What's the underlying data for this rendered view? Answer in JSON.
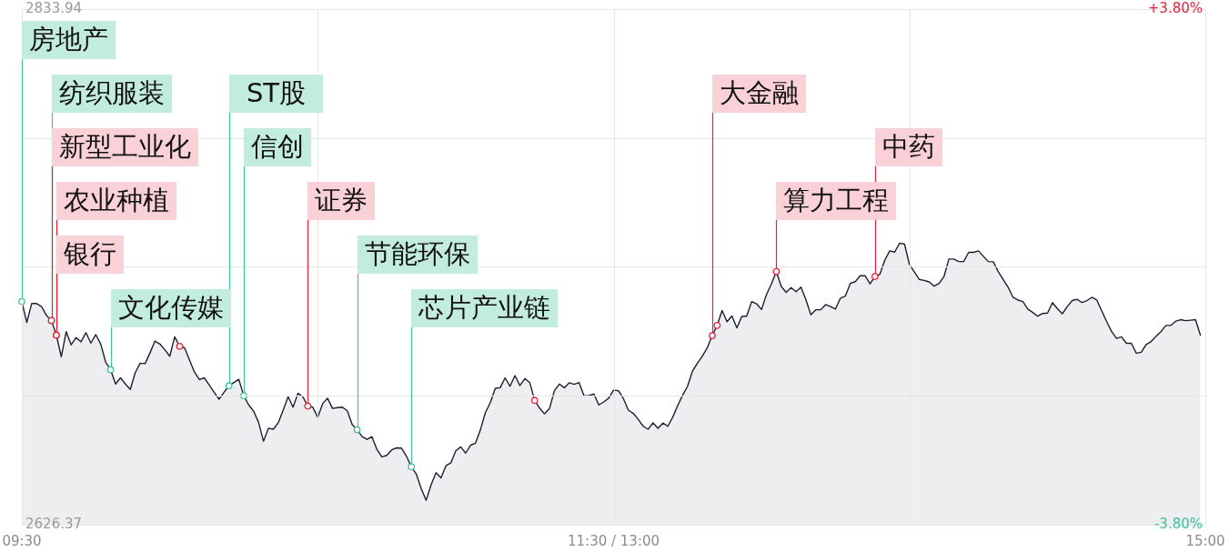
{
  "chart_data": {
    "type": "area",
    "grid": true,
    "categories": [
      "09:30",
      null,
      null,
      null,
      null,
      null,
      null,
      null,
      null,
      null,
      null,
      null,
      null,
      null,
      null,
      null,
      null,
      null,
      null,
      null,
      null,
      null,
      null,
      null,
      null,
      null,
      null,
      null,
      null,
      null,
      null,
      null,
      null,
      null,
      null,
      null,
      null,
      null,
      null,
      null,
      null,
      null,
      null,
      null,
      null,
      null,
      null,
      null,
      null,
      null,
      null,
      null,
      null,
      null,
      null,
      null,
      null,
      null,
      null,
      null,
      null,
      null,
      null,
      null,
      null,
      null,
      null,
      null,
      null,
      null,
      null,
      null,
      null,
      null,
      null,
      null,
      null,
      null,
      null,
      null,
      null,
      null,
      null,
      null,
      null,
      null,
      null,
      null,
      null,
      null,
      null,
      null,
      null,
      null,
      null,
      null,
      null,
      null,
      null,
      null,
      null,
      null,
      null,
      null,
      null,
      null,
      null,
      null,
      null,
      null,
      null,
      null,
      null,
      null,
      null,
      null,
      null,
      null,
      null,
      null,
      "11:30 / 13:00",
      null,
      null,
      null,
      null,
      null,
      null,
      null,
      null,
      null,
      null,
      null,
      null,
      null,
      null,
      null,
      null,
      null,
      null,
      null,
      null,
      null,
      null,
      null,
      null,
      null,
      null,
      null,
      null,
      null,
      null,
      null,
      null,
      null,
      null,
      null,
      null,
      null,
      null,
      null,
      null,
      null,
      null,
      null,
      null,
      null,
      null,
      null,
      null,
      null,
      null,
      null,
      null,
      null,
      null,
      null,
      null,
      null,
      null,
      null,
      null,
      null,
      null,
      null,
      null,
      null,
      null,
      null,
      null,
      null,
      null,
      null,
      null,
      null,
      null,
      null,
      null,
      null,
      null,
      null,
      null,
      null,
      null,
      null,
      null,
      null,
      null,
      null,
      null,
      null,
      null,
      null,
      null,
      null,
      null,
      null,
      null,
      null,
      null,
      null,
      null,
      null,
      null,
      null,
      null,
      null,
      null,
      null,
      null,
      null,
      null,
      null,
      null,
      null,
      null,
      null,
      null,
      null,
      null,
      null,
      "15:00"
    ],
    "ylim": [
      2626.37,
      2833.94
    ],
    "yticks": [
      2626.37,
      {
        "value": 2678.26,
        "label": null
      },
      {
        "value": 2730.16,
        "label": null
      },
      {
        "value": 2782.05,
        "label": null
      },
      2833.94
    ],
    "y2lim": [
      -3.8,
      3.8
    ],
    "y2ticks": [
      {
        "value": -3.8,
        "label": "-3.80%"
      },
      {
        "value": 3.8,
        "label": "+3.80%"
      }
    ],
    "series": [
      {
        "color": "#1e1e30",
        "values": [
          2716.2,
          2707.8,
          2715.4,
          2715.4,
          2714.2,
          2710.6,
          2708.6,
          2702.7,
          2694.0,
          2704.1,
          2698.8,
          2701.7,
          2700.0,
          2703.7,
          2699.5,
          2702.9,
          2699.1,
          2691.8,
          2688.8,
          2683.0,
          2685.5,
          2683.0,
          2680.8,
          2687.6,
          2691.4,
          2691.2,
          2695.6,
          2700.3,
          2699.1,
          2696.8,
          2694.2,
          2702.0,
          2698.2,
          2697.6,
          2692.7,
          2687.8,
          2684.8,
          2685.5,
          2682.6,
          2679.7,
          2676.9,
          2679.7,
          2682.3,
          2683.6,
          2684.9,
          2678.3,
          2674.6,
          2672.1,
          2667.6,
          2660.0,
          2665.2,
          2664.8,
          2667.4,
          2672.5,
          2677.9,
          2673.7,
          2679.3,
          2677.8,
          2674.1,
          2673.7,
          2669.6,
          2675.1,
          2677.3,
          2673.2,
          2673.5,
          2673.7,
          2672.2,
          2666.6,
          2664.6,
          2661.8,
          2660.7,
          2661.8,
          2656.7,
          2653.7,
          2654.3,
          2656.5,
          2657.3,
          2657.2,
          2653.9,
          2649.7,
          2646.7,
          2640.8,
          2636.2,
          2642.5,
          2647.3,
          2645.2,
          2650.1,
          2651.3,
          2656.1,
          2657.7,
          2655.2,
          2658.4,
          2659.2,
          2664.6,
          2671.5,
          2675.5,
          2681.3,
          2681.5,
          2685.5,
          2682.1,
          2686.4,
          2682.4,
          2685.2,
          2683.6,
          2676.4,
          2673.3,
          2671.0,
          2673.1,
          2680.3,
          2683.0,
          2681.5,
          2683.5,
          2682.9,
          2683.6,
          2678.3,
          2678.4,
          2679.0,
          2674.6,
          2675.8,
          2677.3,
          2680.6,
          2680.3,
          2677.1,
          2672.5,
          2671.2,
          2668.8,
          2666.0,
          2664.8,
          2667.4,
          2665.2,
          2667.3,
          2666.0,
          2669.7,
          2674.3,
          2678.5,
          2682.1,
          2688.2,
          2691.4,
          2694.2,
          2697.6,
          2702.5,
          2706.6,
          2712.6,
          2708.1,
          2710.4,
          2705.6,
          2710.2,
          2710.4,
          2716.2,
          2715.3,
          2713.0,
          2719.0,
          2723.3,
          2728.3,
          2722.3,
          2719.9,
          2721.8,
          2720.2,
          2722.0,
          2717.0,
          2710.9,
          2712.9,
          2712.9,
          2715.0,
          2714.2,
          2713.2,
          2717.6,
          2718.4,
          2723.5,
          2724.2,
          2726.6,
          2726.6,
          2723.3,
          2726.3,
          2727.2,
          2732.9,
          2736.6,
          2736.1,
          2739.7,
          2739.3,
          2731.1,
          2728.1,
          2725.1,
          2724.7,
          2724.1,
          2722.4,
          2723.5,
          2726.3,
          2733.3,
          2733.3,
          2732.3,
          2732.3,
          2736.0,
          2736.0,
          2736.6,
          2734.4,
          2732.3,
          2732.2,
          2728.3,
          2725.1,
          2722.0,
          2717.9,
          2716.8,
          2716.2,
          2713.2,
          2711.8,
          2710.3,
          2711.4,
          2711.6,
          2715.8,
          2713.3,
          2711.3,
          2714.2,
          2716.6,
          2717.1,
          2715.8,
          2716.6,
          2717.9,
          2716.8,
          2712.4,
          2708.1,
          2704.1,
          2701.4,
          2702.0,
          2699.4,
          2699.4,
          2695.4,
          2695.8,
          2698.9,
          2700.1,
          2702.2,
          2704.1,
          2706.6,
          2706.6,
          2708.3,
          2708.9,
          2708.5,
          2708.7,
          2708.9,
          2702.7,
          null
        ]
      },
      {
        "type": "scatter",
        "marker": "circle",
        "color": "#41c29c",
        "values": [
          2716.2,
          null,
          null,
          null,
          null,
          null,
          2708.6,
          null,
          null,
          null,
          null,
          null,
          null,
          null,
          null,
          null,
          null,
          null,
          2688.8,
          null,
          null,
          null,
          null,
          null,
          null,
          null,
          null,
          null,
          null,
          null,
          null,
          null,
          null,
          null,
          null,
          null,
          null,
          null,
          null,
          null,
          null,
          null,
          2682.3,
          null,
          null,
          2678.3,
          null,
          null,
          null,
          null,
          null,
          null,
          null,
          null,
          null,
          null,
          null,
          null,
          null,
          null,
          null,
          null,
          null,
          null,
          null,
          null,
          null,
          null,
          2664.6,
          null,
          null,
          null,
          null,
          null,
          null,
          null,
          null,
          null,
          null,
          2649.7,
          null,
          null,
          null,
          null,
          null,
          null,
          null,
          null,
          null,
          null,
          null,
          null,
          null,
          null,
          null,
          null,
          null,
          null,
          null,
          null,
          null,
          null,
          null,
          null,
          null,
          null,
          null,
          null,
          null,
          null,
          null,
          null,
          null,
          null,
          null,
          null,
          null,
          null,
          null,
          null,
          null,
          null,
          null,
          null,
          null,
          null,
          null,
          null,
          null,
          null,
          null,
          null,
          null,
          null,
          null,
          null,
          null,
          null,
          null,
          null,
          null,
          null,
          null,
          null,
          null,
          null,
          null,
          null,
          null,
          null,
          null,
          null,
          null,
          null,
          null,
          null,
          null,
          null,
          null,
          null,
          null,
          null,
          null,
          null,
          null,
          null,
          null,
          null,
          null,
          null,
          null,
          null,
          null,
          null,
          null,
          null,
          null,
          null,
          null,
          null,
          null,
          null,
          null,
          null,
          null,
          null,
          null,
          null,
          null,
          null,
          null,
          null,
          null,
          null,
          null,
          null,
          null,
          null,
          null,
          null,
          null,
          null,
          null,
          null,
          null,
          null,
          null,
          null,
          null,
          null,
          null,
          null,
          null,
          null,
          null,
          null,
          null,
          null,
          null,
          null,
          null,
          null,
          null,
          null,
          null,
          null,
          null,
          null,
          null,
          null,
          null,
          null,
          null,
          null,
          null,
          null,
          null,
          null,
          null,
          null,
          null
        ],
        "value_labels": [
          "房地产",
          null,
          null,
          null,
          null,
          null,
          "纺织服装",
          null,
          null,
          null,
          null,
          null,
          null,
          null,
          null,
          null,
          null,
          null,
          "文化传媒",
          null,
          null,
          null,
          null,
          null,
          null,
          null,
          null,
          null,
          null,
          null,
          null,
          null,
          null,
          null,
          null,
          null,
          null,
          null,
          null,
          null,
          null,
          null,
          "ST股",
          null,
          null,
          "信创",
          null,
          null,
          null,
          null,
          null,
          null,
          null,
          null,
          null,
          null,
          null,
          null,
          null,
          null,
          null,
          null,
          null,
          null,
          null,
          null,
          null,
          null,
          "节能环保",
          null,
          null,
          null,
          null,
          null,
          null,
          null,
          null,
          null,
          null,
          "芯片产业链",
          null,
          null,
          null,
          null,
          null,
          null,
          null,
          null,
          null,
          null,
          null,
          null,
          null,
          null,
          null,
          null,
          null,
          null,
          null,
          null,
          null,
          null,
          null,
          null,
          null,
          null,
          null,
          null,
          null,
          null,
          null,
          null,
          null,
          null,
          null,
          null,
          null,
          null,
          null,
          null,
          null,
          null,
          null,
          null,
          null,
          null,
          null,
          null,
          null,
          null,
          null,
          null,
          null,
          null,
          null,
          null,
          null,
          null,
          null,
          null,
          null,
          null,
          null,
          null,
          null,
          null,
          null,
          null,
          null,
          null,
          null,
          null,
          null,
          null,
          null,
          null,
          null,
          null,
          null,
          null,
          null,
          null,
          null,
          null,
          null,
          null,
          null,
          null,
          null,
          null,
          null,
          null,
          null,
          null,
          null,
          null,
          null,
          null,
          null,
          null,
          null,
          null,
          null,
          null,
          null,
          null,
          null,
          null,
          null,
          null,
          null,
          null,
          null,
          null,
          null,
          null,
          null,
          null,
          null,
          null,
          null,
          null,
          null,
          null,
          null,
          null,
          null,
          null,
          null,
          null,
          null,
          null,
          null,
          null,
          null,
          null,
          null,
          null,
          null,
          null,
          null,
          null,
          null,
          null,
          null,
          null,
          null,
          null,
          null,
          null,
          null,
          null,
          null,
          null,
          null,
          null,
          null,
          null,
          null,
          null,
          null
        ]
      },
      {
        "type": "scatter",
        "marker": "circle",
        "color": "#e8203a",
        "values": [
          null,
          null,
          null,
          null,
          null,
          null,
          2708.6,
          2702.7,
          null,
          null,
          null,
          null,
          null,
          null,
          null,
          null,
          null,
          null,
          null,
          null,
          null,
          null,
          null,
          null,
          null,
          null,
          null,
          null,
          null,
          null,
          null,
          null,
          2698.2,
          null,
          null,
          null,
          null,
          null,
          null,
          null,
          null,
          null,
          null,
          null,
          null,
          null,
          null,
          null,
          null,
          null,
          null,
          null,
          null,
          null,
          null,
          null,
          null,
          null,
          2674.1,
          null,
          null,
          null,
          null,
          null,
          null,
          null,
          null,
          null,
          null,
          null,
          null,
          null,
          null,
          null,
          null,
          null,
          null,
          null,
          null,
          null,
          null,
          null,
          null,
          null,
          null,
          null,
          null,
          null,
          null,
          null,
          null,
          null,
          null,
          null,
          null,
          null,
          null,
          null,
          null,
          null,
          null,
          null,
          null,
          null,
          2676.4,
          null,
          null,
          null,
          null,
          null,
          null,
          null,
          null,
          null,
          null,
          null,
          null,
          null,
          null,
          null,
          null,
          null,
          null,
          null,
          null,
          null,
          null,
          null,
          null,
          null,
          null,
          null,
          null,
          null,
          null,
          null,
          null,
          null,
          null,
          null,
          2702.5,
          2706.6,
          null,
          null,
          null,
          null,
          null,
          null,
          null,
          null,
          null,
          null,
          null,
          2728.3,
          null,
          null,
          null,
          null,
          null,
          null,
          null,
          null,
          null,
          null,
          null,
          null,
          null,
          null,
          null,
          null,
          null,
          null,
          null,
          2726.3,
          null,
          null,
          null,
          null,
          null,
          null,
          null,
          null,
          null,
          null,
          null,
          null,
          null,
          null,
          null,
          null,
          null,
          null,
          null,
          null,
          null,
          null,
          null,
          null,
          null,
          null,
          null,
          null,
          null,
          null,
          null,
          null,
          null,
          null,
          null,
          null,
          null,
          null,
          null,
          null,
          null,
          null,
          null,
          null,
          null,
          null,
          null,
          null,
          null,
          null,
          null,
          null,
          null,
          null,
          null,
          null,
          null,
          null,
          null,
          null,
          null,
          null,
          null,
          null,
          null,
          null,
          null
        ],
        "value_labels": [
          null,
          null,
          null,
          null,
          null,
          null,
          "新型工业化",
          "农业种植",
          null,
          null,
          null,
          null,
          null,
          null,
          null,
          null,
          null,
          null,
          null,
          null,
          null,
          null,
          null,
          null,
          null,
          null,
          null,
          null,
          null,
          null,
          null,
          null,
          null,
          null,
          null,
          null,
          null,
          null,
          null,
          null,
          null,
          null,
          null,
          null,
          null,
          null,
          null,
          null,
          null,
          null,
          null,
          null,
          null,
          null,
          null,
          null,
          null,
          null,
          "证券",
          null,
          null,
          null,
          null,
          null,
          null,
          null,
          null,
          null,
          null,
          null,
          null,
          null,
          null,
          null,
          null,
          null,
          null,
          null,
          null,
          null,
          null,
          null,
          null,
          null,
          null,
          null,
          null,
          null,
          null,
          null,
          null,
          null,
          null,
          null,
          null,
          null,
          null,
          null,
          null,
          null,
          null,
          null,
          null,
          null,
          null,
          null,
          null,
          null,
          null,
          null,
          null,
          null,
          null,
          null,
          null,
          null,
          null,
          null,
          null,
          null,
          null,
          null,
          null,
          null,
          null,
          null,
          null,
          null,
          null,
          null,
          null,
          null,
          null,
          null,
          null,
          null,
          null,
          null,
          null,
          null,
          "大金融",
          null,
          null,
          null,
          null,
          null,
          null,
          null,
          null,
          null,
          null,
          null,
          null,
          "算力工程",
          null,
          null,
          null,
          null,
          null,
          null,
          null,
          null,
          null,
          null,
          null,
          null,
          null,
          null,
          null,
          null,
          null,
          null,
          null,
          "中药",
          null,
          null,
          null,
          null,
          null,
          null,
          null,
          null,
          null,
          null,
          null,
          null,
          null,
          null,
          null,
          null,
          null,
          null,
          null,
          null,
          null,
          null,
          null,
          null,
          null,
          null,
          null,
          null,
          null,
          null,
          null,
          null,
          null,
          null,
          null,
          null,
          null,
          null,
          null,
          null,
          null,
          null,
          null,
          null,
          null,
          null,
          null,
          null,
          null,
          null,
          null,
          null,
          null,
          null,
          null,
          null,
          null,
          null,
          null,
          null,
          null,
          null,
          null,
          null,
          null,
          null,
          null
        ]
      },
      {
        "type": "scatter",
        "marker": "circle",
        "color": "#e8203a",
        "values": [
          null,
          null,
          null,
          null,
          null,
          null,
          null,
          2702.7,
          null,
          null,
          null,
          null,
          null,
          null,
          null,
          null,
          null,
          null,
          null,
          null,
          null,
          null,
          null,
          null,
          null,
          null,
          null,
          null,
          null,
          null,
          null,
          null,
          null,
          null,
          null,
          null,
          null,
          null,
          null,
          null,
          null,
          null,
          null,
          null,
          null,
          null,
          null,
          null,
          null,
          null,
          null,
          null,
          null,
          null,
          null,
          null,
          null,
          null,
          null,
          null,
          null,
          null,
          null,
          null,
          null,
          null,
          null,
          null,
          null,
          null,
          null,
          null,
          null,
          null,
          null,
          null,
          null,
          null,
          null,
          null,
          null,
          null,
          null,
          null,
          null,
          null,
          null,
          null,
          null,
          null,
          null,
          null,
          null,
          null,
          null,
          null,
          null,
          null,
          null,
          null,
          null,
          null,
          null,
          null,
          null,
          null,
          null,
          null,
          null,
          null,
          null,
          null,
          null,
          null,
          null,
          null,
          null,
          null,
          null,
          null,
          null,
          null,
          null,
          null,
          null,
          null,
          null,
          null,
          null,
          null,
          null,
          null,
          null,
          null,
          null,
          null,
          null,
          null,
          null,
          null,
          null,
          null,
          null,
          null,
          null,
          null,
          null,
          null,
          null,
          null,
          null,
          null,
          null,
          null,
          null,
          null,
          null,
          null,
          null,
          null,
          null,
          null,
          null,
          null,
          null,
          null,
          null,
          null,
          null,
          null,
          null,
          null,
          null,
          null,
          null,
          null,
          null,
          null,
          null,
          null,
          null,
          null,
          null,
          null,
          null,
          null,
          null,
          null,
          null,
          null,
          null,
          null,
          null,
          null,
          null,
          null,
          null,
          null,
          null,
          null,
          null,
          null,
          null,
          null,
          null,
          null,
          null,
          null,
          null,
          null,
          null,
          null,
          null,
          null,
          null,
          null,
          null,
          null,
          null,
          null,
          null,
          null,
          null,
          null,
          null,
          null,
          null,
          null,
          null,
          null,
          null,
          null,
          null,
          null,
          null,
          null,
          null,
          null,
          null,
          null,
          null
        ],
        "value_labels": [
          null,
          null,
          null,
          null,
          null,
          null,
          null,
          "银行",
          null,
          null,
          null,
          null,
          null,
          null,
          null,
          null,
          null,
          null,
          null,
          null,
          null,
          null,
          null,
          null,
          null,
          null,
          null,
          null,
          null,
          null,
          null,
          null,
          null,
          null,
          null,
          null,
          null,
          null,
          null,
          null,
          null,
          null,
          null,
          null,
          null,
          null,
          null,
          null,
          null,
          null,
          null,
          null,
          null,
          null,
          null,
          null,
          null,
          null,
          null,
          null,
          null,
          null,
          null,
          null,
          null,
          null,
          null,
          null,
          null,
          null,
          null,
          null,
          null,
          null,
          null,
          null,
          null,
          null,
          null,
          null,
          null,
          null,
          null,
          null,
          null,
          null,
          null,
          null,
          null,
          null,
          null,
          null,
          null,
          null,
          null,
          null,
          null,
          null,
          null,
          null,
          null,
          null,
          null,
          null,
          null,
          null,
          null,
          null,
          null,
          null,
          null,
          null,
          null,
          null,
          null,
          null,
          null,
          null,
          null,
          null,
          null,
          null,
          null,
          null,
          null,
          null,
          null,
          null,
          null,
          null,
          null,
          null,
          null,
          null,
          null,
          null,
          null,
          null,
          null,
          null,
          null,
          null,
          null,
          null,
          null,
          null,
          null,
          null,
          null,
          null,
          null,
          null,
          null,
          null,
          null,
          null,
          null,
          null,
          null,
          null,
          null,
          null,
          null,
          null,
          null,
          null,
          null,
          null,
          null,
          null,
          null,
          null,
          null,
          null,
          null,
          null,
          null,
          null,
          null,
          null,
          null,
          null,
          null,
          null,
          null,
          null,
          null,
          null,
          null,
          null,
          null,
          null,
          null,
          null,
          null,
          null,
          null,
          null,
          null,
          null,
          null,
          null,
          null,
          null,
          null,
          null,
          null,
          null,
          null,
          null,
          null,
          null,
          null,
          null,
          null,
          null,
          null,
          null,
          null,
          null,
          null,
          null,
          null,
          null,
          null,
          null,
          null,
          null,
          null,
          null,
          null,
          null,
          null,
          null,
          null,
          null,
          null,
          null,
          null,
          null,
          null
        ]
      }
    ]
  }
}
